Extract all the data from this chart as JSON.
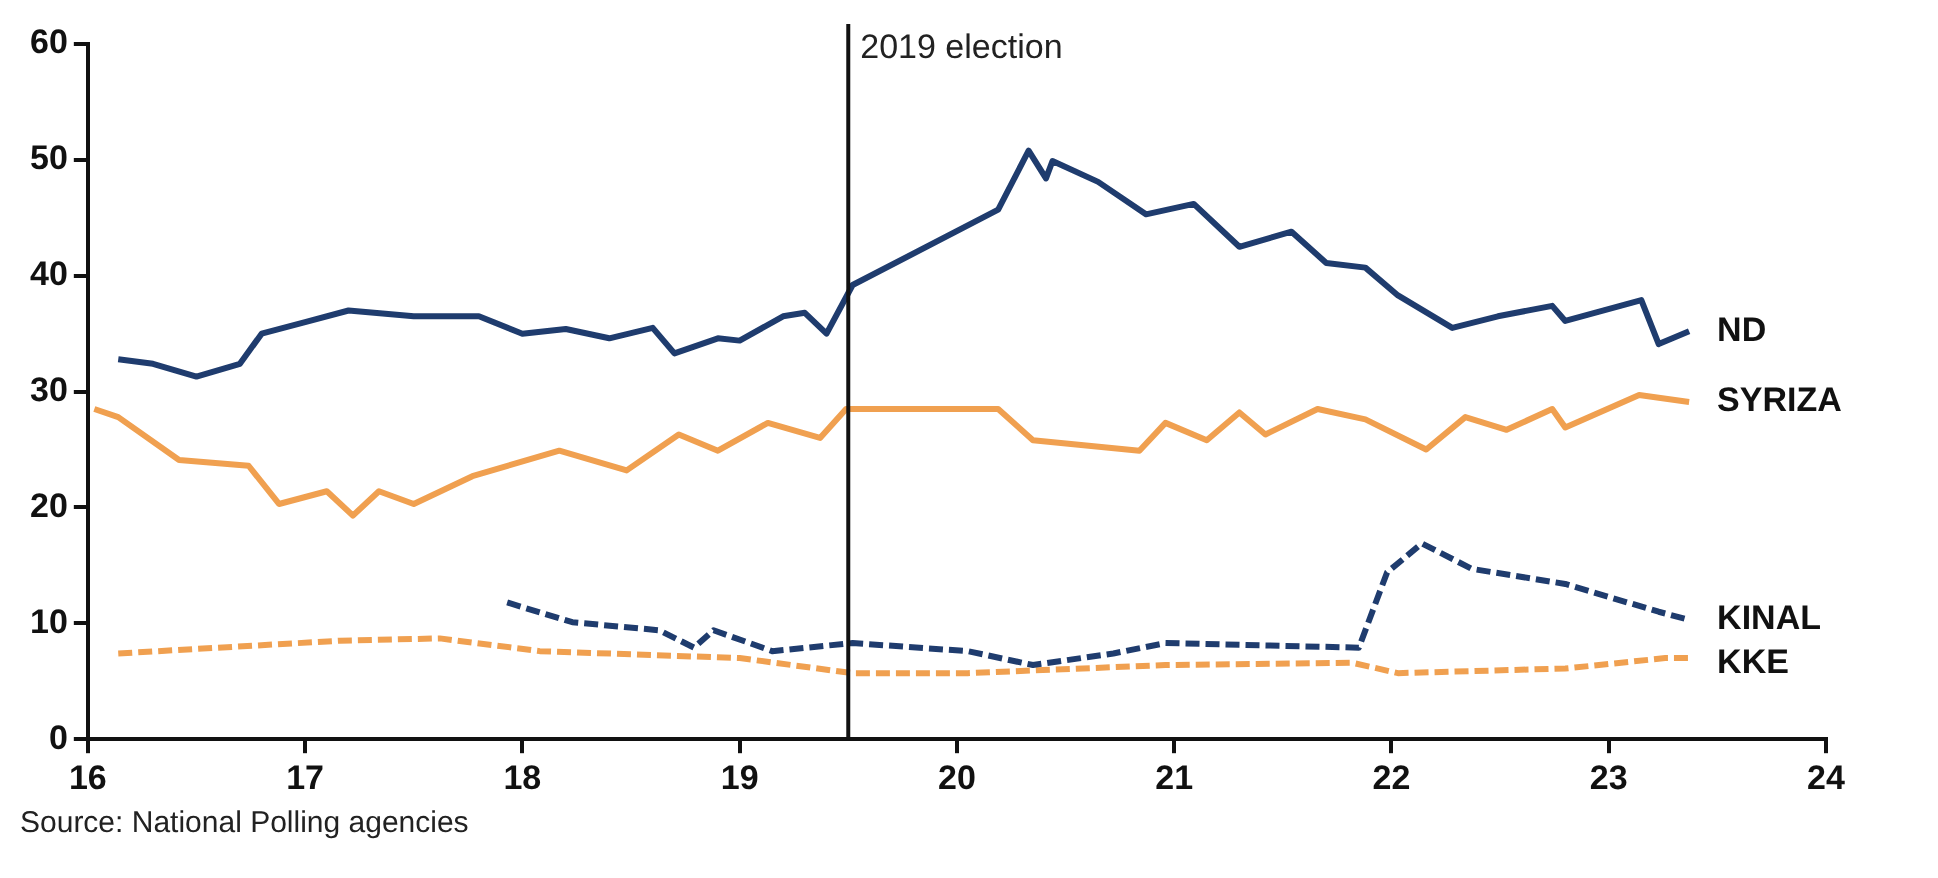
{
  "chart_data": {
    "type": "line",
    "xlim": [
      16,
      24
    ],
    "xticks": [
      16,
      17,
      18,
      19,
      20,
      21,
      22,
      23,
      24
    ],
    "ylim": [
      0,
      60
    ],
    "yticks": [
      0,
      10,
      20,
      30,
      40,
      50,
      60
    ],
    "grid": false,
    "marker": "none",
    "ref_lines": [
      {
        "axis": "x",
        "value": 19.5,
        "label": "2019 election",
        "color": "#111111"
      }
    ],
    "annotations": [
      "Source: National Polling agencies"
    ],
    "series": [
      {
        "name": "ND",
        "color": "#1f3c6e",
        "line_style": "solid",
        "x": [
          16.14,
          16.3,
          16.5,
          16.7,
          16.8,
          17.0,
          17.2,
          17.5,
          17.8,
          18.0,
          18.2,
          18.4,
          18.6,
          18.7,
          18.9,
          19.0,
          19.2,
          19.3,
          19.4,
          19.52,
          20.19,
          20.33,
          20.41,
          20.44,
          20.65,
          20.87,
          21.09,
          21.3,
          21.54,
          21.7,
          21.88,
          22.03,
          22.28,
          22.49,
          22.74,
          22.8,
          23.15,
          23.23,
          23.37
        ],
        "values": [
          32.8,
          32.4,
          31.3,
          32.4,
          35,
          36,
          37,
          36.5,
          36.5,
          35,
          35.4,
          34.6,
          35.5,
          33.3,
          34.6,
          34.4,
          36.5,
          36.8,
          35,
          39.2,
          45.7,
          50.8,
          48.4,
          49.9,
          48.1,
          45.3,
          46.2,
          42.5,
          43.8,
          41.1,
          40.7,
          38.3,
          35.5,
          36.5,
          37.4,
          36.1,
          37.9,
          34.1,
          35.2
        ]
      },
      {
        "name": "SYRIZA",
        "color": "#f0a050",
        "line_style": "solid",
        "x": [
          16.03,
          16.14,
          16.42,
          16.74,
          16.88,
          17.1,
          17.22,
          17.34,
          17.5,
          17.77,
          18.17,
          18.48,
          18.72,
          18.9,
          19.13,
          19.37,
          19.49,
          20.19,
          20.35,
          20.84,
          20.96,
          21.15,
          21.3,
          21.42,
          21.66,
          21.88,
          22.16,
          22.34,
          22.53,
          22.74,
          22.8,
          23.14,
          23.37
        ],
        "values": [
          28.5,
          27.8,
          24.1,
          23.6,
          20.3,
          21.4,
          19.3,
          21.4,
          20.3,
          22.7,
          24.9,
          23.2,
          26.3,
          24.9,
          27.3,
          26,
          28.5,
          28.5,
          25.8,
          24.9,
          27.3,
          25.8,
          28.2,
          26.3,
          28.5,
          27.6,
          25,
          27.8,
          26.7,
          28.5,
          26.9,
          29.7,
          29.1
        ]
      },
      {
        "name": "KINAL",
        "color": "#1f3c6e",
        "line_style": "dashed",
        "x": [
          17.93,
          18.23,
          18.63,
          18.79,
          18.88,
          19.15,
          19.52,
          20.05,
          20.35,
          20.72,
          20.96,
          21.85,
          21.98,
          22.14,
          22.37,
          22.8,
          23.23,
          23.37
        ],
        "values": [
          11.8,
          10.1,
          9.4,
          7.9,
          9.4,
          7.6,
          8.3,
          7.6,
          6.4,
          7.4,
          8.3,
          7.9,
          14.4,
          16.9,
          14.7,
          13.4,
          11,
          10.3
        ]
      },
      {
        "name": "KKE",
        "color": "#f0a050",
        "line_style": "dashed",
        "x": [
          16.14,
          17.16,
          17.62,
          18.08,
          19.0,
          19.52,
          20.05,
          20.96,
          21.82,
          22.03,
          22.8,
          23.26,
          23.37
        ],
        "values": [
          7.4,
          8.5,
          8.7,
          7.6,
          7,
          5.7,
          5.7,
          6.4,
          6.6,
          5.7,
          6.1,
          7,
          7
        ]
      }
    ]
  }
}
